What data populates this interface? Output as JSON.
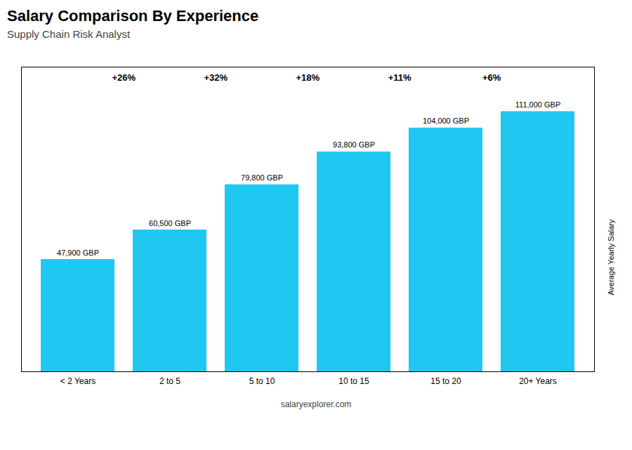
{
  "chart_data": {
    "type": "bar",
    "title": "Salary Comparison By Experience",
    "subtitle": "Supply Chain Risk Analyst",
    "ylabel": "Average Yearly Salary",
    "categories": [
      "< 2 Years",
      "2 to 5",
      "5 to 10",
      "10 to 15",
      "15 to 20",
      "20+ Years"
    ],
    "values": [
      47900,
      60500,
      79800,
      93800,
      104000,
      111000
    ],
    "value_labels": [
      "47,900 GBP",
      "60,500 GBP",
      "79,800 GBP",
      "93,800 GBP",
      "104,000 GBP",
      "111,000 GBP"
    ],
    "data_labels": true,
    "annotations": [
      {
        "text": "+26%",
        "from": "< 2 Years",
        "to": "2 to 5"
      },
      {
        "text": "+32%",
        "from": "2 to 5",
        "to": "5 to 10"
      },
      {
        "text": "+18%",
        "from": "5 to 10",
        "to": "10 to 15"
      },
      {
        "text": "+11%",
        "from": "10 to 15",
        "to": "15 to 20"
      },
      {
        "text": "+6%",
        "from": "15 to 20",
        "to": "20+ Years"
      }
    ],
    "caption": "salaryexplorer.com",
    "color": "#1ec8f0",
    "ylim": [
      0,
      130000
    ],
    "tick_labels": "x",
    "grid": false
  }
}
